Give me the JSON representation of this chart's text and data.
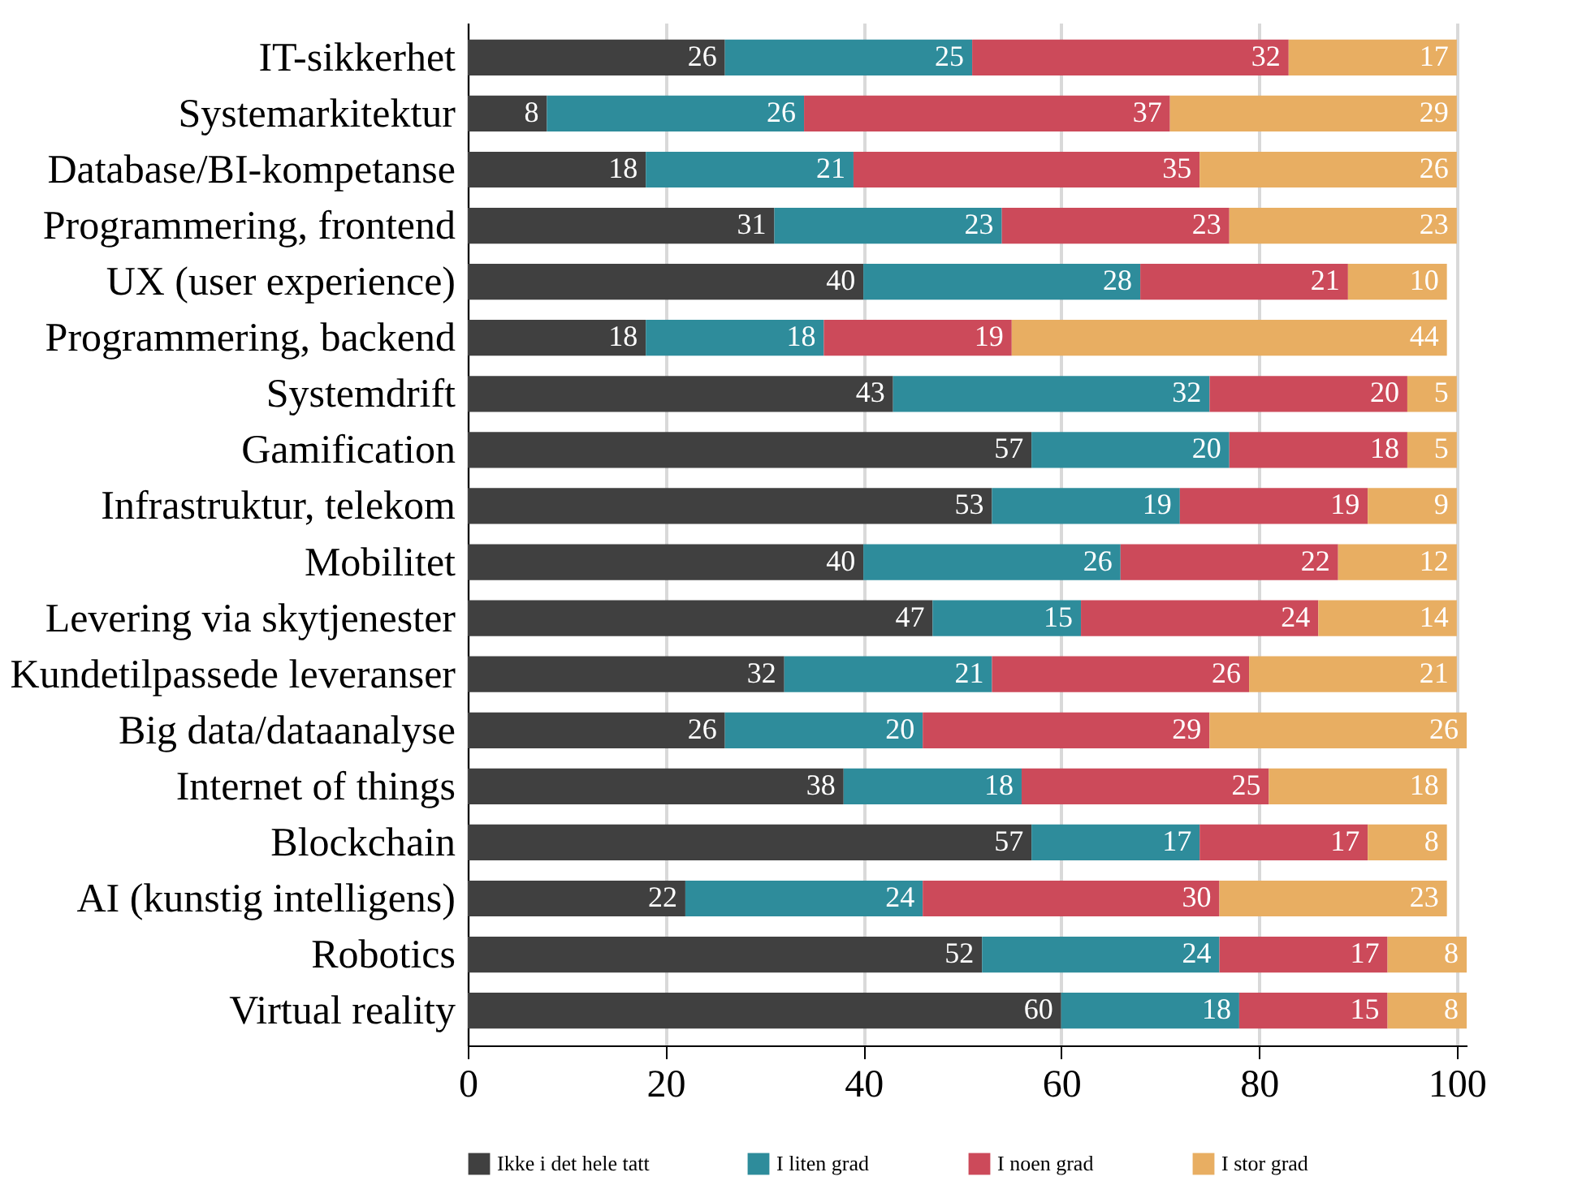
{
  "chart_data": {
    "type": "bar",
    "orientation": "horizontal",
    "stacked": true,
    "data_labels": true,
    "grid": "x",
    "legend": "bottom",
    "categories": [
      "IT-sikkerhet",
      "Systemarkitektur",
      "Database/BI-kompetanse",
      "Programmering, frontend",
      "UX (user experience)",
      "Programmering, backend",
      "Systemdrift",
      "Gamification",
      "Infrastruktur, telekom",
      "Mobilitet",
      "Levering via skytjenester",
      "Kundetilpassede leveranser",
      "Big data/dataanalyse",
      "Internet of things",
      "Blockchain",
      "AI (kunstig intelligens)",
      "Robotics",
      "Virtual reality"
    ],
    "xlim": [
      0,
      101
    ],
    "xticks": [
      0,
      20,
      40,
      60,
      80,
      100
    ],
    "series": [
      {
        "name": "Ikke i det hele tatt",
        "color": "#404040",
        "values": [
          26,
          8,
          18,
          31,
          40,
          18,
          43,
          57,
          53,
          40,
          47,
          32,
          26,
          38,
          57,
          22,
          52,
          60
        ]
      },
      {
        "name": "I liten grad",
        "color": "#2e8c9b",
        "values": [
          25,
          26,
          21,
          23,
          28,
          18,
          32,
          20,
          19,
          26,
          15,
          21,
          20,
          18,
          17,
          24,
          24,
          18
        ]
      },
      {
        "name": "I noen grad",
        "color": "#cc4a5a",
        "values": [
          32,
          37,
          35,
          23,
          21,
          19,
          20,
          18,
          19,
          22,
          24,
          26,
          29,
          25,
          17,
          30,
          17,
          15
        ]
      },
      {
        "name": "I stor grad",
        "color": "#e8ae62",
        "values": [
          17,
          29,
          26,
          23,
          10,
          44,
          5,
          5,
          9,
          12,
          14,
          21,
          26,
          18,
          8,
          23,
          8,
          8
        ]
      }
    ]
  }
}
